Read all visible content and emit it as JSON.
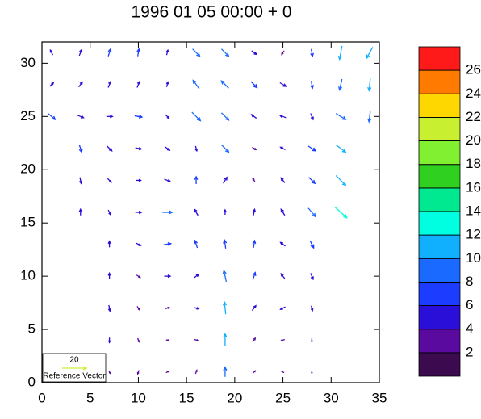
{
  "chart_data": {
    "type": "vector",
    "title": "1996 01 05 00:00 + 0",
    "xlim": [
      0,
      35
    ],
    "xticks": [
      0,
      5,
      10,
      15,
      20,
      25,
      30,
      35
    ],
    "ylim": [
      0,
      32
    ],
    "yticks": [
      0,
      5,
      10,
      15,
      20,
      25,
      30
    ],
    "reference": {
      "value": 20,
      "label": "Reference Vector"
    },
    "levels": [
      2,
      4,
      6,
      8,
      10,
      12,
      14,
      16,
      18,
      20,
      22,
      24,
      26
    ],
    "colors": [
      "#3b0a4f",
      "#5a0a9e",
      "#2a0fd8",
      "#1c3cff",
      "#1a6aff",
      "#10b0ff",
      "#00ffe0",
      "#00e890",
      "#30d020",
      "#80f030",
      "#c8f030",
      "#ffd700",
      "#ff7a00",
      "#ff1a1a"
    ],
    "vectors": [
      [
        7,
        1,
        1,
        -2
      ],
      [
        10,
        1,
        -1,
        -3
      ],
      [
        13,
        1,
        2,
        1
      ],
      [
        16,
        1,
        1,
        3
      ],
      [
        19,
        1,
        0,
        8
      ],
      [
        22,
        1,
        2,
        2
      ],
      [
        25,
        1,
        -2,
        1
      ],
      [
        28,
        1,
        0,
        -2
      ],
      [
        7,
        4,
        0,
        -4
      ],
      [
        10,
        4,
        1,
        -3
      ],
      [
        13,
        4,
        2,
        0
      ],
      [
        16,
        4,
        3,
        -1
      ],
      [
        19,
        4,
        0,
        10
      ],
      [
        22,
        4,
        2,
        3
      ],
      [
        25,
        4,
        -3,
        -1
      ],
      [
        28,
        4,
        0,
        -3
      ],
      [
        7,
        7,
        1,
        -5
      ],
      [
        10,
        7,
        2,
        -3
      ],
      [
        13,
        7,
        3,
        1
      ],
      [
        16,
        7,
        4,
        -1
      ],
      [
        19,
        7,
        -1,
        10
      ],
      [
        22,
        7,
        3,
        4
      ],
      [
        25,
        7,
        -4,
        -2
      ],
      [
        28,
        7,
        1,
        -4
      ],
      [
        7,
        10,
        0,
        5
      ],
      [
        10,
        10,
        3,
        -2
      ],
      [
        13,
        10,
        5,
        0
      ],
      [
        16,
        10,
        4,
        3
      ],
      [
        19,
        10,
        -2,
        9
      ],
      [
        22,
        10,
        2,
        6
      ],
      [
        25,
        10,
        -3,
        4
      ],
      [
        28,
        10,
        2,
        -5
      ],
      [
        7,
        13,
        0,
        5
      ],
      [
        10,
        13,
        4,
        -2
      ],
      [
        13,
        13,
        6,
        1
      ],
      [
        16,
        13,
        -2,
        6
      ],
      [
        19,
        13,
        -1,
        7
      ],
      [
        22,
        13,
        1,
        6
      ],
      [
        25,
        13,
        -4,
        3
      ],
      [
        28,
        13,
        3,
        -6
      ],
      [
        4,
        16,
        0,
        5
      ],
      [
        7,
        16,
        2,
        -4
      ],
      [
        10,
        16,
        5,
        0
      ],
      [
        13,
        16,
        8,
        0
      ],
      [
        16,
        16,
        -3,
        5
      ],
      [
        19,
        16,
        0,
        4
      ],
      [
        22,
        16,
        1,
        5
      ],
      [
        25,
        16,
        -3,
        5
      ],
      [
        28,
        16,
        6,
        -7
      ],
      [
        31,
        16,
        10,
        -9
      ],
      [
        4,
        19,
        1,
        -5
      ],
      [
        7,
        19,
        3,
        -3
      ],
      [
        10,
        19,
        4,
        0
      ],
      [
        13,
        19,
        5,
        -2
      ],
      [
        16,
        19,
        0,
        6
      ],
      [
        19,
        19,
        3,
        5
      ],
      [
        22,
        19,
        -2,
        3
      ],
      [
        25,
        19,
        -3,
        4
      ],
      [
        28,
        19,
        5,
        -5
      ],
      [
        31,
        19,
        8,
        -8
      ],
      [
        4,
        22,
        2,
        -6
      ],
      [
        7,
        22,
        4,
        -4
      ],
      [
        10,
        22,
        5,
        -1
      ],
      [
        13,
        22,
        4,
        -3
      ],
      [
        16,
        22,
        1,
        -4
      ],
      [
        19,
        22,
        6,
        -6
      ],
      [
        22,
        22,
        3,
        -2
      ],
      [
        25,
        22,
        -4,
        2
      ],
      [
        28,
        22,
        6,
        -4
      ],
      [
        31,
        22,
        8,
        -6
      ],
      [
        1,
        25,
        6,
        -5
      ],
      [
        4,
        25,
        5,
        -2
      ],
      [
        7,
        25,
        5,
        0
      ],
      [
        10,
        25,
        6,
        -1
      ],
      [
        13,
        25,
        3,
        -3
      ],
      [
        16,
        25,
        7,
        -7
      ],
      [
        19,
        25,
        6,
        -6
      ],
      [
        22,
        25,
        -4,
        3
      ],
      [
        25,
        25,
        -5,
        2
      ],
      [
        28,
        25,
        2,
        -5
      ],
      [
        31,
        25,
        8,
        -5
      ],
      [
        34,
        25,
        -1,
        -9
      ],
      [
        1,
        28,
        3,
        3
      ],
      [
        4,
        28,
        3,
        4
      ],
      [
        7,
        28,
        2,
        5
      ],
      [
        10,
        28,
        2,
        5
      ],
      [
        13,
        28,
        1,
        4
      ],
      [
        16,
        28,
        -5,
        7
      ],
      [
        19,
        28,
        -6,
        6
      ],
      [
        22,
        28,
        5,
        -5
      ],
      [
        25,
        28,
        5,
        -3
      ],
      [
        28,
        28,
        1,
        -6
      ],
      [
        31,
        28,
        -2,
        -9
      ],
      [
        34,
        28,
        -1,
        -10
      ],
      [
        1,
        31,
        -2,
        4
      ],
      [
        4,
        31,
        2,
        5
      ],
      [
        7,
        31,
        2,
        6
      ],
      [
        10,
        31,
        1,
        6
      ],
      [
        13,
        31,
        1,
        4
      ],
      [
        16,
        31,
        6,
        -6
      ],
      [
        19,
        31,
        6,
        -6
      ],
      [
        22,
        31,
        4,
        -3
      ],
      [
        25,
        31,
        -2,
        -3
      ],
      [
        28,
        31,
        1,
        -6
      ],
      [
        31,
        31,
        -2,
        -11
      ],
      [
        34,
        31,
        -5,
        -9
      ]
    ]
  }
}
